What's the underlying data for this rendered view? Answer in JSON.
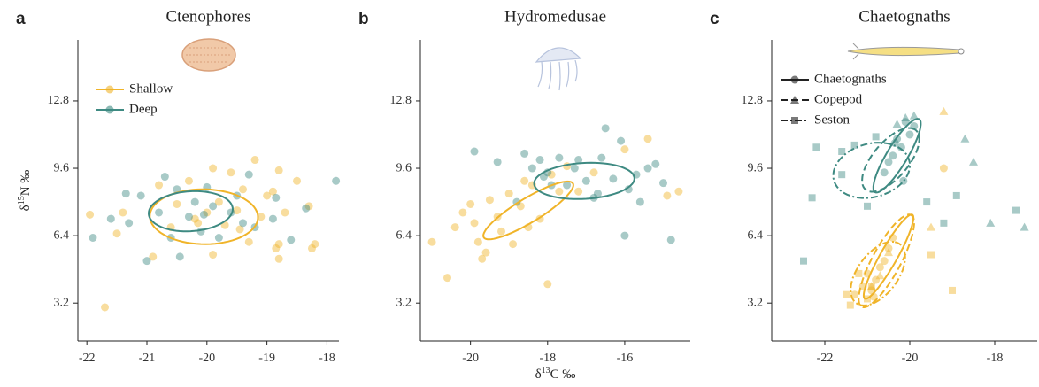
{
  "chart_data": [
    {
      "type": "scatter",
      "panel_label": "a",
      "title": "Ctenophores",
      "y_label": {
        "symbol": "δ",
        "sup": "15",
        "rest": "N ‰"
      },
      "xlim": [
        -22.15,
        -17.8
      ],
      "xticks": [
        -22,
        -21,
        -20,
        -19,
        -18
      ],
      "ylim": [
        1.4,
        15.7
      ],
      "yticks": [
        3.2,
        6.4,
        9.6,
        12.8
      ],
      "legend": "top-left",
      "series": [
        {
          "name": "Shallow",
          "color": "#f0b429",
          "marker": "circle",
          "line_style": "solid",
          "x": [
            -21.7,
            -21.95,
            -21.4,
            -21.5,
            -20.9,
            -20.8,
            -20.5,
            -20.3,
            -20.2,
            -20.0,
            -19.9,
            -19.8,
            -19.7,
            -19.6,
            -19.5,
            -19.4,
            -19.3,
            -19.2,
            -19.1,
            -19.0,
            -18.9,
            -18.8,
            -18.8,
            -18.7,
            -18.5,
            -18.3,
            -18.2,
            -18.25,
            -20.6,
            -19.9,
            -20.15,
            -19.45,
            -18.8,
            -18.85
          ],
          "values": [
            3.0,
            7.4,
            7.5,
            6.5,
            5.4,
            8.8,
            7.9,
            9.0,
            7.2,
            7.5,
            9.6,
            8.0,
            6.9,
            9.4,
            7.6,
            8.6,
            6.1,
            10.0,
            7.3,
            8.3,
            8.5,
            6.0,
            5.3,
            7.5,
            9.0,
            7.8,
            6.0,
            5.8,
            6.8,
            5.5,
            7.0,
            6.7,
            9.5,
            5.8
          ],
          "ellipse": {
            "center": [
              -20.05,
              7.3
            ],
            "axis1": [
              0.9,
              -0.1
            ],
            "axis2": [
              0.05,
              1.3
            ]
          }
        },
        {
          "name": "Deep",
          "color": "#3e8a82",
          "marker": "circle",
          "line_style": "solid",
          "x": [
            -21.9,
            -21.6,
            -21.35,
            -21.3,
            -21.0,
            -21.1,
            -20.8,
            -20.6,
            -20.5,
            -20.45,
            -20.3,
            -20.2,
            -20.1,
            -20.0,
            -19.9,
            -19.8,
            -19.6,
            -19.5,
            -19.4,
            -19.3,
            -19.2,
            -18.85,
            -18.6,
            -18.35,
            -17.85,
            -18.9,
            -20.7,
            -20.05
          ],
          "values": [
            6.3,
            7.2,
            8.4,
            7.0,
            5.2,
            8.3,
            7.5,
            6.3,
            8.6,
            5.4,
            7.3,
            8.0,
            6.6,
            8.7,
            7.8,
            6.3,
            7.5,
            8.3,
            7.0,
            9.3,
            6.8,
            8.2,
            6.2,
            7.7,
            9.0,
            7.2,
            9.2,
            7.4
          ],
          "ellipse": {
            "center": [
              -20.27,
              7.56
            ],
            "axis1": [
              0.7,
              0.1
            ],
            "axis2": [
              0.0,
              0.95
            ]
          }
        }
      ]
    },
    {
      "type": "scatter",
      "panel_label": "b",
      "title": "Hydromedusae",
      "x_label": {
        "symbol": "δ",
        "sup": "13",
        "rest": "C ‰"
      },
      "xlim": [
        -21.3,
        -14.3
      ],
      "xticks": [
        -20,
        -18,
        -16
      ],
      "ylim": [
        1.4,
        15.7
      ],
      "yticks": [
        3.2,
        6.4,
        9.6,
        12.8
      ],
      "series": [
        {
          "color": "#f0b429",
          "marker": "circle",
          "line_style": "solid",
          "x": [
            -21.0,
            -20.6,
            -20.4,
            -20.2,
            -20.0,
            -19.8,
            -19.7,
            -19.6,
            -19.5,
            -19.3,
            -19.2,
            -19.0,
            -18.9,
            -18.7,
            -18.6,
            -18.4,
            -18.2,
            -18.0,
            -17.9,
            -17.7,
            -17.5,
            -17.2,
            -16.8,
            -16.0,
            -15.4,
            -14.9,
            -14.6,
            -19.9,
            -18.5
          ],
          "values": [
            6.1,
            4.4,
            6.8,
            7.5,
            7.9,
            6.1,
            5.3,
            5.6,
            8.1,
            7.3,
            6.6,
            8.4,
            6.0,
            7.8,
            9.0,
            8.8,
            7.2,
            4.1,
            9.3,
            8.5,
            9.7,
            8.5,
            9.4,
            10.5,
            11.0,
            8.3,
            8.5,
            7.0,
            6.8
          ],
          "ellipse": {
            "center": [
              -18.5,
              7.6
            ],
            "axis1": [
              1.15,
              1.3
            ],
            "axis2": [
              -0.2,
              0.45
            ]
          }
        },
        {
          "color": "#3e8a82",
          "marker": "circle",
          "line_style": "solid",
          "x": [
            -19.9,
            -19.3,
            -18.8,
            -18.6,
            -18.4,
            -18.2,
            -18.0,
            -17.9,
            -17.7,
            -17.5,
            -17.3,
            -17.2,
            -17.0,
            -16.8,
            -16.6,
            -16.5,
            -16.3,
            -16.1,
            -16.0,
            -15.9,
            -15.7,
            -15.6,
            -15.4,
            -15.2,
            -15.0,
            -14.8,
            -16.7,
            -18.1
          ],
          "values": [
            10.4,
            9.9,
            8.0,
            10.3,
            9.6,
            10.0,
            9.4,
            8.8,
            10.1,
            8.8,
            9.6,
            10.0,
            9.0,
            8.2,
            10.1,
            11.5,
            9.1,
            10.9,
            6.4,
            8.6,
            9.3,
            8.0,
            9.6,
            9.8,
            8.9,
            6.2,
            8.4,
            9.2
          ],
          "ellipse": {
            "center": [
              -17.05,
              9.0
            ],
            "axis1": [
              1.3,
              0.15
            ],
            "axis2": [
              -0.05,
              0.85
            ]
          }
        }
      ]
    },
    {
      "type": "scatter",
      "panel_label": "c",
      "title": "Chaetognaths",
      "xlim": [
        -23.25,
        -17.0
      ],
      "xticks": [
        -22,
        -20,
        -18
      ],
      "ylim": [
        1.4,
        15.7
      ],
      "yticks": [
        3.2,
        6.4,
        9.6,
        12.8
      ],
      "legend": "top-left",
      "series": [
        {
          "name": "Chaetognaths",
          "color": "#f0b429",
          "marker": "circle",
          "line_style": "solid",
          "x": [
            -21.3,
            -21.1,
            -20.9,
            -20.8,
            -20.7,
            -20.6,
            -20.5,
            -21.0,
            -20.85,
            -19.2,
            -20.4
          ],
          "values": [
            3.6,
            4.0,
            3.8,
            4.3,
            4.9,
            5.2,
            5.8,
            4.6,
            3.5,
            9.6,
            6.3
          ],
          "ellipse": {
            "center": [
              -20.5,
              5.4
            ],
            "axis1": [
              0.55,
              2.0
            ],
            "axis2": [
              0.2,
              -0.1
            ]
          }
        },
        {
          "name": "Chaetognaths",
          "color": "#3e8a82",
          "marker": "circle",
          "line_style": "solid",
          "x": [
            -20.6,
            -20.4,
            -20.3,
            -20.2,
            -20.1,
            -20.0,
            -20.5,
            -20.15,
            -19.9,
            -20.35
          ],
          "values": [
            9.4,
            10.2,
            11.0,
            10.6,
            11.8,
            11.2,
            9.9,
            9.0,
            11.6,
            10.8
          ],
          "ellipse": {
            "center": [
              -20.3,
              10.2
            ],
            "axis1": [
              0.5,
              1.75
            ],
            "axis2": [
              0.25,
              -0.1
            ]
          }
        },
        {
          "name": "Copepod",
          "color": "#f0b429",
          "marker": "triangle",
          "line_style": "dashed",
          "x": [
            -20.7,
            -20.9,
            -19.2,
            -19.5,
            -20.5
          ],
          "values": [
            4.5,
            4.0,
            12.3,
            6.8,
            5.6
          ],
          "ellipse": {
            "center": [
              -20.55,
              5.2
            ],
            "axis1": [
              0.55,
              2.2
            ],
            "axis2": [
              0.35,
              -0.1
            ]
          }
        },
        {
          "name": "Copepod",
          "color": "#3e8a82",
          "marker": "triangle",
          "line_style": "dashed",
          "x": [
            -19.9,
            -18.5,
            -18.7,
            -17.3,
            -18.1,
            -20.3,
            -20.1
          ],
          "values": [
            12.1,
            9.9,
            11.0,
            6.8,
            7.0,
            11.7,
            12.0
          ],
          "ellipse": {
            "center": [
              -20.45,
              10.0
            ],
            "axis1": [
              0.5,
              1.5
            ],
            "axis2": [
              0.45,
              -0.2
            ]
          }
        },
        {
          "name": "Seston",
          "color": "#f0b429",
          "marker": "square",
          "line_style": "dotdash",
          "x": [
            -21.5,
            -21.2,
            -19.0,
            -19.5,
            -20.9,
            -21.4,
            -21.0
          ],
          "values": [
            3.6,
            4.6,
            3.8,
            5.5,
            4.0,
            3.1,
            3.4
          ],
          "ellipse": {
            "center": [
              -20.75,
              4.6
            ],
            "axis1": [
              0.4,
              1.5
            ],
            "axis2": [
              0.5,
              -0.2
            ]
          }
        },
        {
          "name": "Seston",
          "color": "#3e8a82",
          "marker": "square",
          "line_style": "dotdash",
          "x": [
            -22.5,
            -22.2,
            -22.3,
            -21.6,
            -21.3,
            -20.8,
            -19.6,
            -19.2,
            -18.9,
            -17.5,
            -21.0,
            -21.6
          ],
          "values": [
            5.2,
            10.6,
            8.2,
            9.3,
            10.7,
            11.1,
            8.0,
            7.0,
            8.3,
            7.6,
            7.8,
            10.4
          ],
          "ellipse": {
            "center": [
              -20.9,
              9.5
            ],
            "axis1": [
              0.3,
              1.3
            ],
            "axis2": [
              0.85,
              -0.2
            ]
          }
        }
      ]
    }
  ]
}
